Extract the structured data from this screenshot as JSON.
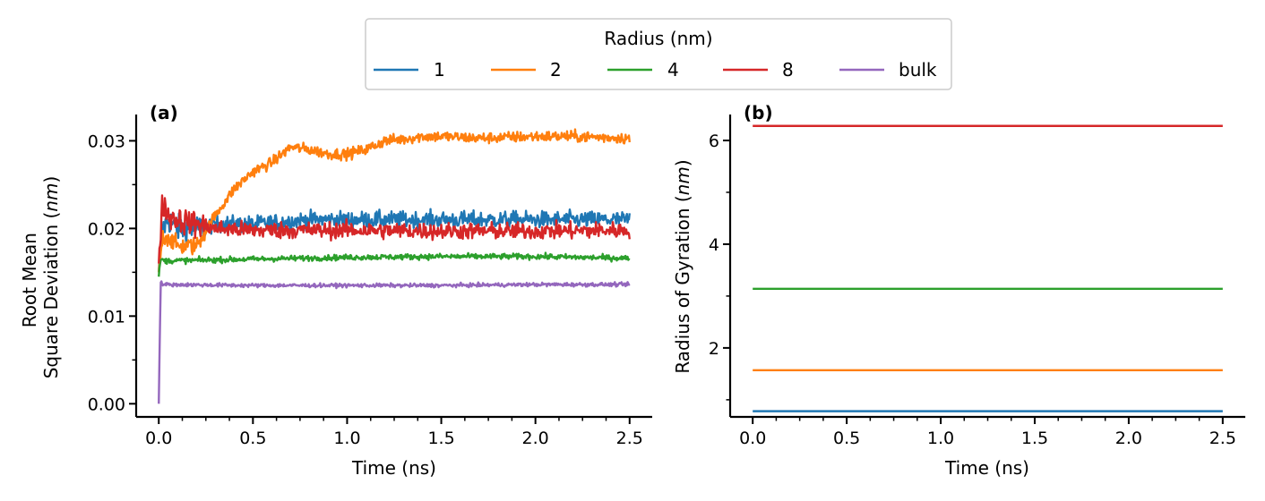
{
  "legend": {
    "title": "Radius (nm)",
    "entries": [
      {
        "label": "1",
        "color": "#1f77b4"
      },
      {
        "label": "2",
        "color": "#ff7f0e"
      },
      {
        "label": "4",
        "color": "#2ca02c"
      },
      {
        "label": "8",
        "color": "#d62728"
      },
      {
        "label": "bulk",
        "color": "#9467bd"
      }
    ]
  },
  "chart_data": [
    {
      "type": "line",
      "panel_label": "(a)",
      "xlabel": "Time (ns)",
      "ylabel_lines": [
        "Root Mean",
        "Square Deviation (nm)"
      ],
      "ylabel_italic_unit": "nm",
      "xlim": [
        -0.12,
        2.62
      ],
      "ylim": [
        -0.0015,
        0.033
      ],
      "xticks": [
        0.0,
        0.5,
        1.0,
        1.5,
        2.0,
        2.5
      ],
      "xtick_labels": [
        "0.0",
        "0.5",
        "1.0",
        "1.5",
        "2.0",
        "2.5"
      ],
      "yticks": [
        0.0,
        0.01,
        0.02,
        0.03
      ],
      "ytick_labels": [
        "0.00",
        "0.01",
        "0.02",
        "0.03"
      ],
      "x_minor_step": 0.125,
      "y_minor_step": 0.005,
      "series": [
        {
          "name": "1",
          "color": "#1f77b4",
          "noise": 0.0009,
          "x": [
            0.0,
            0.02,
            0.05,
            0.1,
            0.2,
            0.3,
            0.5,
            0.8,
            1.0,
            1.5,
            2.0,
            2.5
          ],
          "y": [
            0.015,
            0.02,
            0.021,
            0.02,
            0.02,
            0.0205,
            0.0205,
            0.021,
            0.021,
            0.021,
            0.021,
            0.021
          ]
        },
        {
          "name": "2",
          "color": "#ff7f0e",
          "noise": 0.0006,
          "x": [
            0.0,
            0.02,
            0.05,
            0.1,
            0.2,
            0.3,
            0.4,
            0.5,
            0.6,
            0.7,
            0.8,
            0.9,
            1.0,
            1.1,
            1.2,
            1.3,
            1.4,
            1.5,
            1.7,
            2.0,
            2.2,
            2.5
          ],
          "y": [
            0.015,
            0.019,
            0.019,
            0.018,
            0.018,
            0.0215,
            0.0245,
            0.0265,
            0.0275,
            0.0293,
            0.029,
            0.0285,
            0.0285,
            0.029,
            0.03,
            0.0302,
            0.0305,
            0.0305,
            0.0303,
            0.0305,
            0.0305,
            0.0303
          ]
        },
        {
          "name": "4",
          "color": "#2ca02c",
          "noise": 0.0003,
          "x": [
            0.0,
            0.01,
            0.03,
            0.5,
            1.0,
            1.5,
            2.0,
            2.5
          ],
          "y": [
            0.0145,
            0.0165,
            0.0163,
            0.0165,
            0.0167,
            0.0168,
            0.0168,
            0.0166
          ]
        },
        {
          "name": "8",
          "color": "#d62728",
          "noise": 0.0009,
          "x": [
            0.0,
            0.02,
            0.05,
            0.1,
            0.2,
            0.3,
            0.5,
            1.0,
            1.5,
            2.0,
            2.5
          ],
          "y": [
            0.016,
            0.023,
            0.0215,
            0.021,
            0.0205,
            0.02,
            0.0198,
            0.0198,
            0.0197,
            0.0197,
            0.0198
          ]
        },
        {
          "name": "bulk",
          "color": "#9467bd",
          "noise": 0.0002,
          "x": [
            0.0,
            0.01,
            0.03,
            0.5,
            1.0,
            1.5,
            2.0,
            2.5
          ],
          "y": [
            0.0,
            0.0138,
            0.0136,
            0.0135,
            0.0135,
            0.0135,
            0.0136,
            0.0136
          ]
        }
      ]
    },
    {
      "type": "line",
      "panel_label": "(b)",
      "xlabel": "Time (ns)",
      "ylabel": "Radius of Gyration (nm)",
      "ylabel_italic_unit": "nm",
      "xlim": [
        -0.12,
        2.62
      ],
      "ylim": [
        0.67,
        6.5
      ],
      "xticks": [
        0.0,
        0.5,
        1.0,
        1.5,
        2.0,
        2.5
      ],
      "xtick_labels": [
        "0.0",
        "0.5",
        "1.0",
        "1.5",
        "2.0",
        "2.5"
      ],
      "yticks": [
        2,
        4,
        6
      ],
      "ytick_labels": [
        "2",
        "4",
        "6"
      ],
      "x_minor_step": 0.125,
      "y_minor_step": 1,
      "series": [
        {
          "name": "1",
          "color": "#1f77b4",
          "x": [
            0.0,
            2.5
          ],
          "y": [
            0.78,
            0.78
          ]
        },
        {
          "name": "2",
          "color": "#ff7f0e",
          "x": [
            0.0,
            2.5
          ],
          "y": [
            1.57,
            1.57
          ]
        },
        {
          "name": "4",
          "color": "#2ca02c",
          "x": [
            0.0,
            2.5
          ],
          "y": [
            3.14,
            3.14
          ]
        },
        {
          "name": "8",
          "color": "#d62728",
          "x": [
            0.0,
            2.5
          ],
          "y": [
            6.28,
            6.28
          ]
        }
      ]
    }
  ]
}
